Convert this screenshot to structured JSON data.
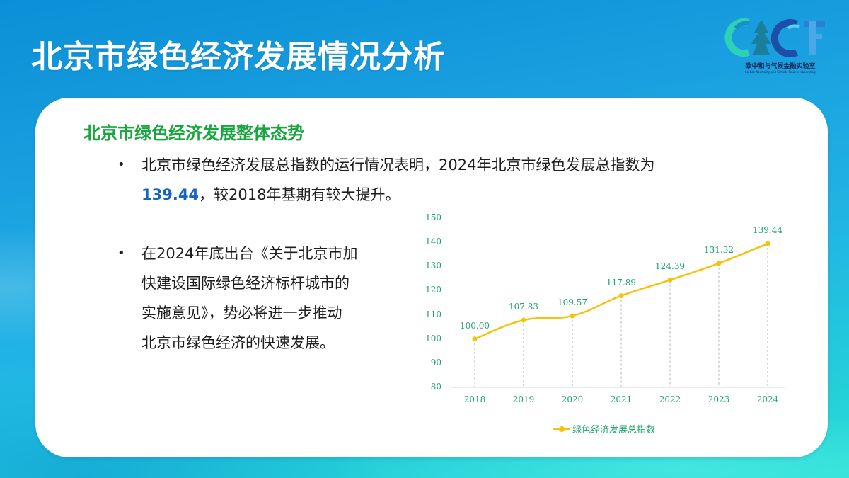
{
  "page": {
    "title": "北京市绿色经济发展情况分析"
  },
  "logo": {
    "text": "碳中和与气候金融实验室",
    "subtext": "Carbon Neutrality and Climate Finance Laboratory",
    "mark": "CNCF"
  },
  "content": {
    "section_title": "北京市绿色经济发展整体态势",
    "bullets": [
      {
        "line1": "北京市绿色经济发展总指数的运行情况表明，2024年北京市绿色发展总指数为",
        "highlight": "139.44",
        "line2_rest": "，较2018年基期有较大提升。"
      },
      {
        "lines": [
          "在2024年底出台《关于北京市加",
          "快建设国际绿色经济标杆城市的",
          "实施意见》，势必将进一步推动",
          "北京市绿色经济的快速发展。"
        ]
      }
    ],
    "bullet_symbol": "•"
  },
  "colors": {
    "title_green": "#1aa63f",
    "highlight_blue": "#1565c0",
    "line_yellow": "#f5c210",
    "axis_text_green": "#1aa66a"
  },
  "chart_data": {
    "type": "line",
    "title": "",
    "xlabel": "",
    "ylabel": "",
    "categories": [
      "2018",
      "2019",
      "2020",
      "2021",
      "2022",
      "2023",
      "2024"
    ],
    "series": [
      {
        "name": "绿色经济发展总指数",
        "values": [
          100.0,
          107.83,
          109.57,
          117.89,
          124.39,
          131.32,
          139.44
        ],
        "labels": [
          "100.00",
          "107.83",
          "109.57",
          "117.89",
          "124.39",
          "131.32",
          "139.44"
        ],
        "color": "#f5c210"
      }
    ],
    "ylim": [
      80,
      150
    ],
    "yticks": [
      "150",
      "140",
      "130",
      "120",
      "110",
      "100",
      "90",
      "80"
    ],
    "grid": false,
    "drop_lines": "dashed",
    "legend_position": "bottom"
  }
}
